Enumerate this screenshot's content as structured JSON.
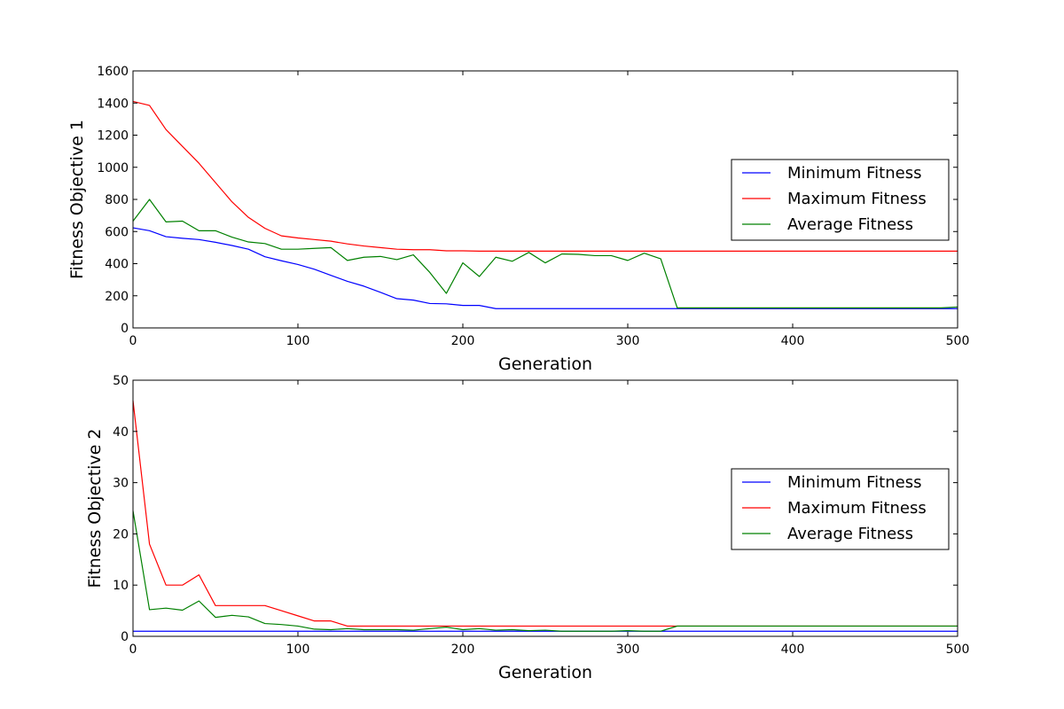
{
  "chart_data": [
    {
      "type": "line",
      "title": "",
      "xlabel": "Generation",
      "ylabel": "Fitness Objective 1",
      "xlim": [
        0,
        500
      ],
      "ylim": [
        0,
        1600
      ],
      "xticks": [
        0,
        100,
        200,
        300,
        400,
        500
      ],
      "yticks": [
        0,
        200,
        400,
        600,
        800,
        1000,
        1200,
        1400,
        1600
      ],
      "grid": false,
      "legend_position": "center-right",
      "x": [
        0,
        10,
        20,
        30,
        40,
        50,
        60,
        70,
        80,
        90,
        100,
        110,
        120,
        130,
        140,
        150,
        160,
        170,
        180,
        190,
        200,
        210,
        220,
        230,
        240,
        250,
        260,
        270,
        280,
        290,
        300,
        310,
        320,
        330,
        340,
        350,
        360,
        370,
        380,
        390,
        400,
        410,
        420,
        430,
        440,
        450,
        460,
        470,
        480,
        490,
        500
      ],
      "series": [
        {
          "name": "Minimum Fitness",
          "color": "#0000ff",
          "values": [
            623,
            605,
            568,
            558,
            550,
            533,
            513,
            490,
            443,
            418,
            395,
            365,
            327,
            290,
            260,
            222,
            182,
            173,
            152,
            150,
            140,
            140,
            120,
            120,
            120,
            120,
            120,
            120,
            120,
            120,
            120,
            120,
            120,
            120,
            120,
            120,
            120,
            120,
            120,
            120,
            120,
            120,
            120,
            120,
            120,
            120,
            120,
            120,
            120,
            120,
            120
          ]
        },
        {
          "name": "Maximum Fitness",
          "color": "#ff0000",
          "values": [
            1410,
            1385,
            1235,
            1130,
            1025,
            905,
            785,
            688,
            620,
            573,
            560,
            550,
            540,
            523,
            510,
            500,
            490,
            487,
            487,
            480,
            480,
            478,
            478,
            478,
            478,
            478,
            478,
            478,
            478,
            478,
            478,
            478,
            478,
            478,
            478,
            478,
            478,
            478,
            478,
            478,
            478,
            478,
            478,
            478,
            478,
            478,
            478,
            478,
            478,
            478,
            478
          ]
        },
        {
          "name": "Average Fitness",
          "color": "#008000",
          "values": [
            665,
            800,
            660,
            665,
            605,
            605,
            565,
            535,
            525,
            490,
            490,
            495,
            500,
            420,
            440,
            445,
            425,
            455,
            345,
            215,
            405,
            320,
            440,
            415,
            470,
            405,
            460,
            458,
            450,
            450,
            420,
            465,
            430,
            125,
            125,
            125,
            125,
            125,
            125,
            125,
            125,
            125,
            125,
            125,
            125,
            125,
            125,
            125,
            125,
            125,
            130
          ]
        }
      ]
    },
    {
      "type": "line",
      "title": "",
      "xlabel": "Generation",
      "ylabel": "Fitness Objective 2",
      "xlim": [
        0,
        500
      ],
      "ylim": [
        0,
        50
      ],
      "xticks": [
        0,
        100,
        200,
        300,
        400,
        500
      ],
      "yticks": [
        0,
        10,
        20,
        30,
        40,
        50
      ],
      "grid": false,
      "legend_position": "center-right",
      "x": [
        0,
        10,
        20,
        30,
        40,
        50,
        60,
        70,
        80,
        90,
        100,
        110,
        120,
        130,
        140,
        150,
        160,
        170,
        180,
        190,
        200,
        210,
        220,
        230,
        240,
        250,
        260,
        270,
        280,
        290,
        300,
        310,
        320,
        330,
        340,
        350,
        360,
        370,
        380,
        390,
        400,
        410,
        420,
        430,
        440,
        450,
        460,
        470,
        480,
        490,
        500
      ],
      "series": [
        {
          "name": "Minimum Fitness",
          "color": "#0000ff",
          "values": [
            1,
            1,
            1,
            1,
            1,
            1,
            1,
            1,
            1,
            1,
            1,
            1,
            1,
            1,
            1,
            1,
            1,
            1,
            1,
            1,
            1,
            1,
            1,
            1,
            1,
            1,
            1,
            1,
            1,
            1,
            1,
            1,
            1,
            1,
            1,
            1,
            1,
            1,
            1,
            1,
            1,
            1,
            1,
            1,
            1,
            1,
            1,
            1,
            1,
            1,
            1
          ]
        },
        {
          "name": "Maximum Fitness",
          "color": "#ff0000",
          "values": [
            46,
            18,
            10,
            10,
            12,
            6,
            6,
            6,
            6,
            5,
            4,
            3,
            3,
            2,
            2,
            2,
            2,
            2,
            2,
            2,
            2,
            2,
            2,
            2,
            2,
            2,
            2,
            2,
            2,
            2,
            2,
            2,
            2,
            2,
            2,
            2,
            2,
            2,
            2,
            2,
            2,
            2,
            2,
            2,
            2,
            2,
            2,
            2,
            2,
            2,
            2
          ]
        },
        {
          "name": "Average Fitness",
          "color": "#008000",
          "values": [
            24.5,
            5.2,
            5.5,
            5.1,
            6.9,
            3.7,
            4.1,
            3.8,
            2.5,
            2.3,
            2.0,
            1.4,
            1.3,
            1.5,
            1.3,
            1.3,
            1.3,
            1.2,
            1.5,
            1.8,
            1.3,
            1.5,
            1.2,
            1.3,
            1.1,
            1.2,
            1.0,
            1.0,
            1.0,
            1.0,
            1.1,
            1.0,
            1.0,
            2.0,
            2.0,
            2.0,
            2.0,
            2.0,
            2.0,
            2.0,
            2.0,
            2.0,
            2.0,
            2.0,
            2.0,
            2.0,
            2.0,
            2.0,
            2.0,
            2.0,
            2.0
          ]
        }
      ]
    }
  ]
}
